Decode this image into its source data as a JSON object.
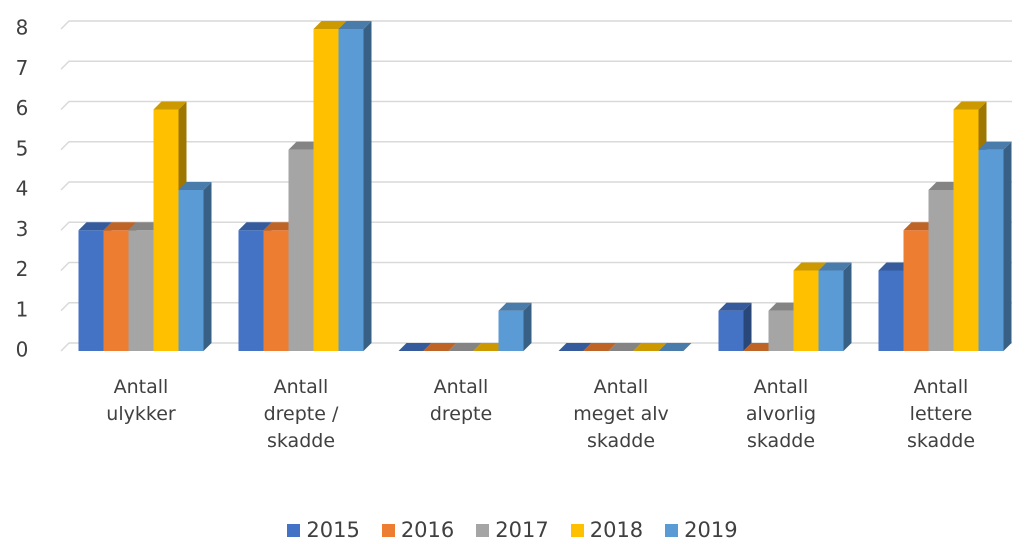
{
  "chart_data": {
    "type": "bar3d",
    "categories": [
      "Antall ulykker",
      "Antall drepte / skadde",
      "Antall drepte",
      "Antall meget alv skadde",
      "Antall alvorlig skadde",
      "Antall lettere skadde"
    ],
    "series": [
      {
        "name": "2015",
        "color": "#4472c4",
        "values": [
          3,
          3,
          0,
          0,
          1,
          2
        ]
      },
      {
        "name": "2016",
        "color": "#ed7d31",
        "values": [
          3,
          3,
          0,
          0,
          0,
          3
        ]
      },
      {
        "name": "2017",
        "color": "#a5a5a5",
        "values": [
          3,
          5,
          0,
          0,
          1,
          4
        ]
      },
      {
        "name": "2018",
        "color": "#ffc000",
        "values": [
          6,
          8,
          0,
          0,
          2,
          6
        ]
      },
      {
        "name": "2019",
        "color": "#5b9bd5",
        "values": [
          4,
          8,
          1,
          0,
          2,
          5
        ]
      }
    ],
    "ylim": [
      0,
      8
    ],
    "yticks": [
      0,
      1,
      2,
      3,
      4,
      5,
      6,
      7,
      8
    ],
    "grid": true,
    "legend": "bottom"
  }
}
